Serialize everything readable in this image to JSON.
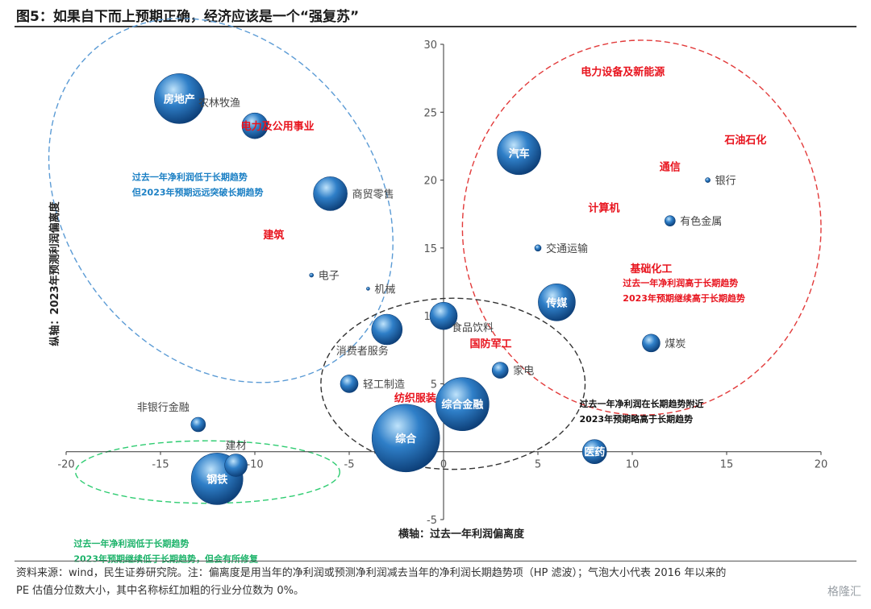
{
  "title": "图5：如果自下而上预期正确，经济应该是一个“强复苏”",
  "footer": {
    "line1": "资料来源：wind，民生证券研究院。注：偏离度是用当年的净利润或预测净利润减去当年的净利润长期趋势项（HP 滤波）；气泡大小代表 2016 年以来的",
    "line2": "PE 估值分位数大小，其中名称标红加粗的行业分位数为 0%。"
  },
  "watermark": "格隆汇",
  "colors": {
    "bubble": "#2f7fc8",
    "bubble_light": "#bfe3fb",
    "bubble_dark": "#0d3f78",
    "red": "#e8141e",
    "blue_note": "#1a7fc4",
    "green_note": "#1db36a",
    "black_note": "#111111",
    "ellipse_blue": "#5b9bd5",
    "ellipse_red": "#e23a3a",
    "ellipse_green": "#2ecc71",
    "ellipse_black": "#333333"
  },
  "chart_data": {
    "type": "scatter",
    "subtype": "bubble",
    "xlabel": "横轴：过去一年利润偏离度",
    "ylabel": "纵轴：2023年预测利润偏离度",
    "xlim": [
      -20,
      20
    ],
    "ylim": [
      -5,
      30
    ],
    "xticks": [
      -20,
      -15,
      -10,
      -5,
      0,
      5,
      10,
      15,
      20
    ],
    "yticks": [
      -5,
      5,
      10,
      15,
      20,
      25,
      30
    ],
    "grid": false,
    "points": [
      {
        "name": "房地产",
        "x": -14,
        "y": 26,
        "size": 31,
        "label": "inside",
        "red": false
      },
      {
        "name": "农林牧渔",
        "x": -10,
        "y": 24,
        "size": 16,
        "label": "above-left",
        "red": false
      },
      {
        "name": "电力及公用事业",
        "x": -11,
        "y": 24,
        "size": 0,
        "label": "right",
        "red": true
      },
      {
        "name": "商贸零售",
        "x": -6,
        "y": 19,
        "size": 21,
        "label": "right",
        "red": false
      },
      {
        "name": "建筑",
        "x": -9,
        "y": 16,
        "size": 0,
        "label": "center",
        "red": true
      },
      {
        "name": "电子",
        "x": -7,
        "y": 13,
        "size": 2.5,
        "label": "right",
        "red": false
      },
      {
        "name": "机械",
        "x": -4,
        "y": 12,
        "size": 2,
        "label": "right",
        "red": false
      },
      {
        "name": "食品饮料",
        "x": 0,
        "y": 10,
        "size": 17,
        "label": "below-right",
        "red": false
      },
      {
        "name": "消费者服务",
        "x": -3,
        "y": 9,
        "size": 19,
        "label": "below-left",
        "red": false
      },
      {
        "name": "轻工制造",
        "x": -5,
        "y": 5,
        "size": 11,
        "label": "right",
        "red": false
      },
      {
        "name": "纺织服装",
        "x": -1.5,
        "y": 4,
        "size": 0,
        "label": "center",
        "red": true
      },
      {
        "name": "综合金融",
        "x": 1,
        "y": 3.5,
        "size": 33,
        "label": "inside",
        "red": false
      },
      {
        "name": "综合",
        "x": -2,
        "y": 1,
        "size": 42,
        "label": "inside",
        "red": false
      },
      {
        "name": "国防军工",
        "x": 2.5,
        "y": 8,
        "size": 0,
        "label": "center",
        "red": true
      },
      {
        "name": "家电",
        "x": 3,
        "y": 6,
        "size": 10,
        "label": "right",
        "red": false
      },
      {
        "name": "非银行金融",
        "x": -13,
        "y": 2,
        "size": 9,
        "label": "above-left",
        "red": false
      },
      {
        "name": "建材",
        "x": -11,
        "y": -1,
        "size": 14,
        "label": "above",
        "red": false
      },
      {
        "name": "钢铁",
        "x": -12,
        "y": -2,
        "size": 32,
        "label": "inside",
        "red": false
      },
      {
        "name": "汽车",
        "x": 4,
        "y": 22,
        "size": 27,
        "label": "inside",
        "red": false
      },
      {
        "name": "电力设备及新能源",
        "x": 9.5,
        "y": 28,
        "size": 0,
        "label": "center",
        "red": true
      },
      {
        "name": "石油石化",
        "x": 16,
        "y": 23,
        "size": 0,
        "label": "center",
        "red": true
      },
      {
        "name": "通信",
        "x": 12,
        "y": 21,
        "size": 0,
        "label": "center",
        "red": true
      },
      {
        "name": "银行",
        "x": 14,
        "y": 20,
        "size": 3,
        "label": "right",
        "red": false
      },
      {
        "name": "计算机",
        "x": 8.5,
        "y": 18,
        "size": 0,
        "label": "center",
        "red": true
      },
      {
        "name": "有色金属",
        "x": 12,
        "y": 17,
        "size": 6.5,
        "label": "right",
        "red": false
      },
      {
        "name": "交通运输",
        "x": 5,
        "y": 15,
        "size": 4,
        "label": "right",
        "red": false
      },
      {
        "name": "基础化工",
        "x": 11,
        "y": 13.5,
        "size": 0,
        "label": "center",
        "red": true
      },
      {
        "name": "传媒",
        "x": 6,
        "y": 11,
        "size": 23,
        "label": "inside",
        "red": false
      },
      {
        "name": "煤炭",
        "x": 11,
        "y": 8,
        "size": 11,
        "label": "right",
        "red": false
      },
      {
        "name": "医药",
        "x": 8,
        "y": 0,
        "size": 15,
        "label": "inside",
        "red": false
      }
    ],
    "annotations": [
      {
        "lines": [
          "过去一年净利润低于长期趋势",
          "但2023年预期远远突破长期趋势"
        ],
        "color": "blue_note",
        "x": -16.5,
        "y": 20.0
      },
      {
        "lines": [
          "过去一年净利润高于长期趋势",
          "2023年预期继续高于长期趋势"
        ],
        "color": "red",
        "x": 9.5,
        "y": 12.2
      },
      {
        "lines": [
          "过去一年净利润在长期趋势附近",
          "2023年预期略高于长期趋势"
        ],
        "color": "black_note",
        "x": 7.2,
        "y": 3.3
      },
      {
        "lines": [
          "过去一年净利润低于长期趋势",
          "2023年预期继续低于长期趋势，但会有所修复"
        ],
        "color": "green_note",
        "x": -19.6,
        "y": -7.0
      }
    ],
    "regions": [
      {
        "name": "upper-left",
        "color": "ellipse_blue",
        "cx": -11.8,
        "cy": 18.5,
        "rx": 8.2,
        "ry": 14.5,
        "angle": -38
      },
      {
        "name": "upper-right",
        "color": "ellipse_red",
        "cx": 10.5,
        "cy": 16.5,
        "rx": 9.5,
        "ry": 13.8,
        "angle": 0
      },
      {
        "name": "center",
        "color": "ellipse_black",
        "cx": 0.5,
        "cy": 5.0,
        "rx": 7.0,
        "ry": 6.3,
        "angle": 0
      },
      {
        "name": "lower-left",
        "color": "ellipse_green",
        "cx": -12.5,
        "cy": -1.5,
        "rx": 7.0,
        "ry": 2.3,
        "angle": 0
      }
    ]
  }
}
